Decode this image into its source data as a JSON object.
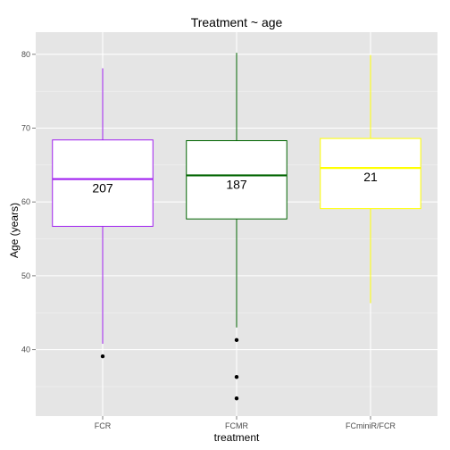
{
  "chart_data": {
    "type": "box",
    "title": "Treatment ~ age",
    "xlabel": "treatment",
    "ylabel": "Age (years)",
    "ylim": [
      31,
      83
    ],
    "yticks": [
      40,
      50,
      60,
      70,
      80
    ],
    "grid": true,
    "legend": "none",
    "categories": [
      "FCR",
      "FCMR",
      "FCminiR/FCR"
    ],
    "boxes": [
      {
        "category": "FCR",
        "color": "#a020f0",
        "whisker_low": 40.8,
        "q1": 56.7,
        "median": 63.1,
        "q3": 68.4,
        "whisker_high": 78.1,
        "outliers": [
          39.1
        ],
        "n_label": "207"
      },
      {
        "category": "FCMR",
        "color": "#006400",
        "whisker_low": 43.0,
        "q1": 57.7,
        "median": 63.6,
        "q3": 68.3,
        "whisker_high": 80.2,
        "outliers": [
          41.3,
          36.3,
          33.4
        ],
        "n_label": "187"
      },
      {
        "category": "FCminiR/FCR",
        "color": "#ffff00",
        "whisker_low": 46.3,
        "q1": 59.1,
        "median": 64.6,
        "q3": 68.6,
        "whisker_high": 79.9,
        "outliers": [],
        "n_label": "21"
      }
    ]
  }
}
